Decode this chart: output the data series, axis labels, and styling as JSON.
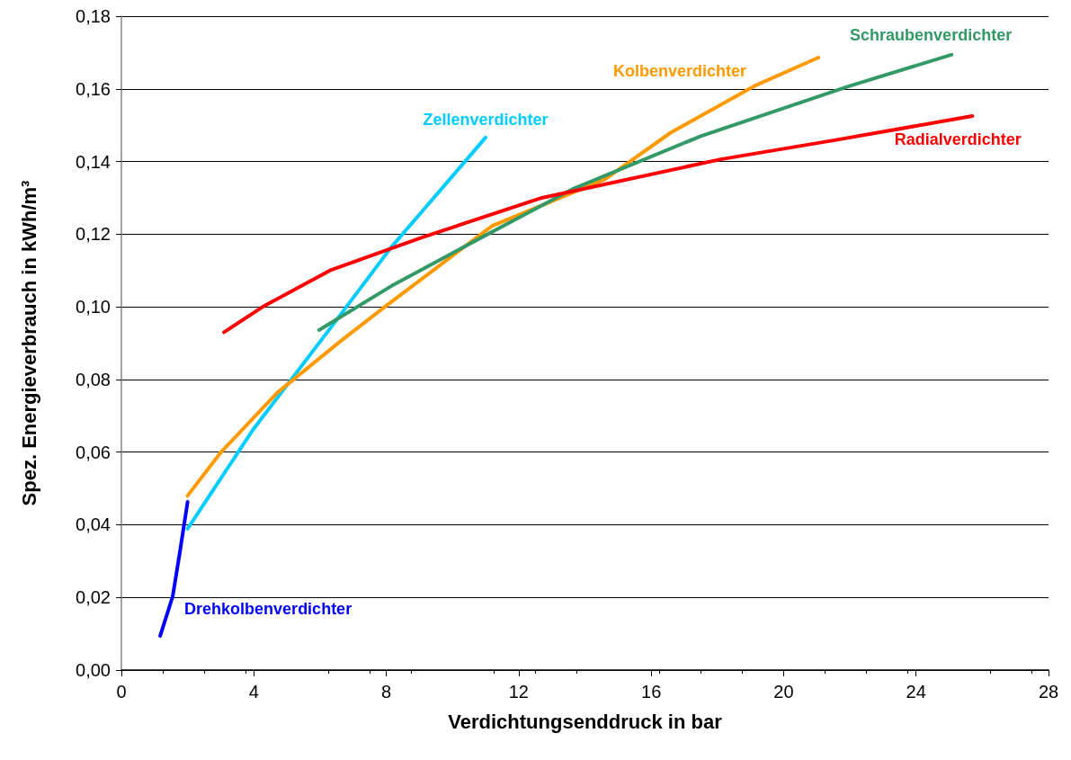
{
  "chart_data": {
    "type": "line",
    "xlabel": "Verdichtungsenddruck in bar",
    "ylabel": "Spez. Energieverbrauch in kWh/m³",
    "xlim": [
      0,
      28
    ],
    "xticks": [
      0,
      4,
      8,
      12,
      16,
      20,
      24,
      28
    ],
    "ylim": [
      0,
      0.18
    ],
    "yticks": [
      {
        "value": 0,
        "label": "0,00"
      },
      {
        "value": 0.02,
        "label": "0,02"
      },
      {
        "value": 0.04,
        "label": "0,04"
      },
      {
        "value": 0.06,
        "label": "0,06"
      },
      {
        "value": 0.08,
        "label": "0,08"
      },
      {
        "value": 0.1,
        "label": "0,10"
      },
      {
        "value": 0.12,
        "label": "0,12"
      },
      {
        "value": 0.14,
        "label": "0,14"
      },
      {
        "value": 0.16,
        "label": "0,16"
      },
      {
        "value": 0.18,
        "label": "0,18"
      }
    ],
    "grid": "y",
    "marker": "none",
    "line_style": "solid",
    "series": [
      {
        "name": "Drehkolbenverdichter",
        "color": "#0000ff",
        "x": [
          1.17,
          1.55,
          1.77,
          2.0
        ],
        "values": [
          0.0094,
          0.0203,
          0.0327,
          0.0463
        ]
      },
      {
        "name": "Zellenverdichter",
        "color": "#00ccff",
        "x": [
          2.0,
          4.0,
          6.3,
          8.15,
          11.0
        ],
        "values": [
          0.0389,
          0.0665,
          0.094,
          0.1164,
          0.1466
        ]
      },
      {
        "name": "Kolbenverdichter",
        "color": "#ff9900",
        "x": [
          2.0,
          3.0,
          4.7,
          6.6,
          8.0,
          11.2,
          14.6,
          16.6,
          19.1,
          21.05
        ],
        "values": [
          0.048,
          0.0599,
          0.0763,
          0.0904,
          0.1003,
          0.1223,
          0.1351,
          0.148,
          0.1607,
          0.1686
        ]
      },
      {
        "name": "Schraubenverdichter",
        "color": "#339966",
        "x": [
          5.97,
          8.15,
          10.86,
          13.6,
          17.5,
          21.97,
          25.07
        ],
        "values": [
          0.0936,
          0.1057,
          0.119,
          0.1323,
          0.147,
          0.1607,
          0.1694
        ]
      },
      {
        "name": "Radialverdichter",
        "color": "#ff0000",
        "x": [
          3.1,
          4.27,
          6.3,
          9.05,
          12.7,
          18.1,
          21.5,
          25.7
        ],
        "values": [
          0.093,
          0.1,
          0.11,
          0.119,
          0.13,
          0.1406,
          0.1458,
          0.1525
        ]
      }
    ]
  }
}
